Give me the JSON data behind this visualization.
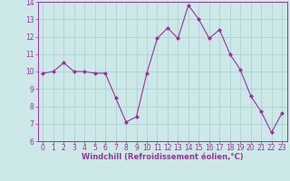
{
  "x": [
    0,
    1,
    2,
    3,
    4,
    5,
    6,
    7,
    8,
    9,
    10,
    11,
    12,
    13,
    14,
    15,
    16,
    17,
    18,
    19,
    20,
    21,
    22,
    23
  ],
  "y": [
    9.9,
    10.0,
    10.5,
    10.0,
    10.0,
    9.9,
    9.9,
    8.5,
    7.1,
    7.4,
    9.9,
    11.9,
    12.5,
    11.9,
    13.8,
    13.0,
    11.9,
    12.4,
    11.0,
    10.1,
    8.6,
    7.7,
    6.5,
    7.6
  ],
  "line_color": "#993399",
  "marker": "D",
  "marker_size": 2,
  "bg_color": "#cce8e8",
  "grid_color": "#aacccc",
  "xlabel": "Windchill (Refroidissement éolien,°C)",
  "xlabel_color": "#993399",
  "tick_color": "#993399",
  "ylim": [
    6,
    14
  ],
  "xlim_min": -0.5,
  "xlim_max": 23.5,
  "yticks": [
    6,
    7,
    8,
    9,
    10,
    11,
    12,
    13,
    14
  ],
  "xticks": [
    0,
    1,
    2,
    3,
    4,
    5,
    6,
    7,
    8,
    9,
    10,
    11,
    12,
    13,
    14,
    15,
    16,
    17,
    18,
    19,
    20,
    21,
    22,
    23
  ],
  "tick_fontsize": 5.5,
  "xlabel_fontsize": 6.0
}
